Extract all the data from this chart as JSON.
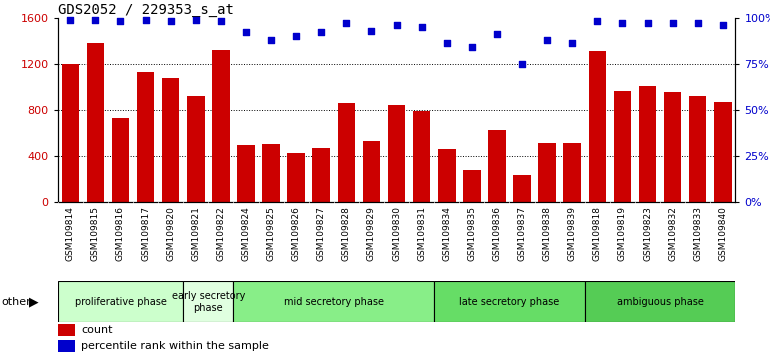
{
  "title": "GDS2052 / 229353_s_at",
  "samples": [
    "GSM109814",
    "GSM109815",
    "GSM109816",
    "GSM109817",
    "GSM109820",
    "GSM109821",
    "GSM109822",
    "GSM109824",
    "GSM109825",
    "GSM109826",
    "GSM109827",
    "GSM109828",
    "GSM109829",
    "GSM109830",
    "GSM109831",
    "GSM109834",
    "GSM109835",
    "GSM109836",
    "GSM109837",
    "GSM109838",
    "GSM109839",
    "GSM109818",
    "GSM109819",
    "GSM109823",
    "GSM109832",
    "GSM109833",
    "GSM109840"
  ],
  "counts": [
    1200,
    1380,
    730,
    1130,
    1080,
    920,
    1320,
    490,
    500,
    420,
    470,
    860,
    530,
    840,
    790,
    460,
    280,
    620,
    230,
    510,
    510,
    1310,
    960,
    1010,
    950,
    920,
    870
  ],
  "percentiles": [
    99,
    99,
    98,
    99,
    98,
    99,
    98,
    92,
    88,
    90,
    92,
    97,
    93,
    96,
    95,
    86,
    84,
    91,
    75,
    88,
    86,
    98,
    97,
    97,
    97,
    97,
    96
  ],
  "phases": [
    {
      "label": "proliferative phase",
      "start": 0,
      "end": 5,
      "color": "#ccffcc"
    },
    {
      "label": "early secretory\nphase",
      "start": 5,
      "end": 7,
      "color": "#e0ffe0"
    },
    {
      "label": "mid secretory phase",
      "start": 7,
      "end": 15,
      "color": "#88ee88"
    },
    {
      "label": "late secretory phase",
      "start": 15,
      "end": 21,
      "color": "#66dd66"
    },
    {
      "label": "ambiguous phase",
      "start": 21,
      "end": 27,
      "color": "#55cc55"
    }
  ],
  "bar_color": "#cc0000",
  "dot_color": "#0000cc",
  "ylim_left": [
    0,
    1600
  ],
  "ylim_right": [
    0,
    100
  ],
  "yticks_left": [
    0,
    400,
    800,
    1200,
    1600
  ],
  "yticks_right": [
    0,
    25,
    50,
    75,
    100
  ],
  "bg_color": "#ffffff",
  "label_bg_color": "#dddddd",
  "title_fontsize": 10,
  "other_label": "other"
}
